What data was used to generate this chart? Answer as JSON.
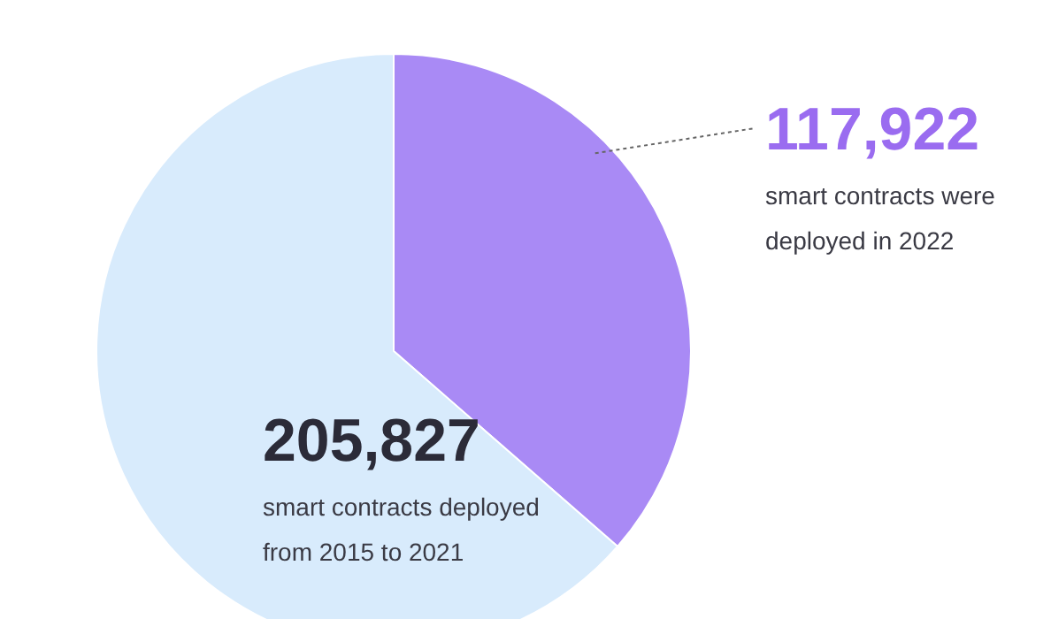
{
  "chart_data": {
    "type": "pie",
    "categories": [
      "smart contracts were\ndeployed in 2022",
      "smart contracts deployed\nfrom 2015 to 2021"
    ],
    "values": [
      117922,
      205827
    ],
    "value_labels": [
      "117,922",
      "205,827"
    ],
    "colors": [
      "#a98af5",
      "#d8ebfc"
    ]
  }
}
